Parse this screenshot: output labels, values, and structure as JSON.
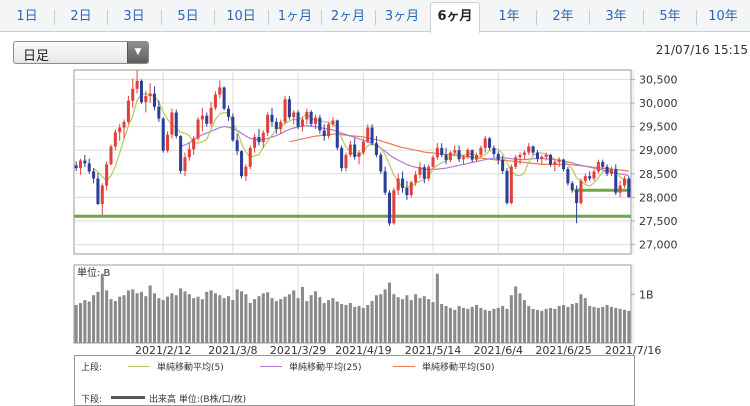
{
  "tabs": [
    {
      "label": "1日",
      "active": false
    },
    {
      "label": "2日",
      "active": false
    },
    {
      "label": "3日",
      "active": false
    },
    {
      "label": "5日",
      "active": false
    },
    {
      "label": "10日",
      "active": false
    },
    {
      "label": "1ヶ月",
      "active": false
    },
    {
      "label": "2ヶ月",
      "active": false
    },
    {
      "label": "3ヶ月",
      "active": false
    },
    {
      "label": "6ヶ月",
      "active": true
    },
    {
      "label": "1年",
      "active": false
    },
    {
      "label": "2年",
      "active": false
    },
    {
      "label": "3年",
      "active": false
    },
    {
      "label": "5年",
      "active": false
    },
    {
      "label": "10年",
      "active": false
    }
  ],
  "period_select": {
    "value": "日足"
  },
  "datetime": "21/07/16 15:15",
  "volume_panel": {
    "unit_label": "単位: B",
    "tick_label": "1B"
  },
  "legend": {
    "upper_label": "上段:",
    "lower_label": "下段:",
    "items": [
      {
        "label": "単純移動平均(5)",
        "color": "#b4c860"
      },
      {
        "label": "単純移動平均(25)",
        "color": "#b07ad8"
      },
      {
        "label": "単純移動平均(50)",
        "color": "#f07a52"
      }
    ],
    "volume_item": {
      "label": "出来高 単位:(B株/口/枚)",
      "color": "#555555"
    }
  },
  "colors": {
    "up": "#e0413a",
    "down": "#2b3f99",
    "support_line": "#70a83c",
    "volume_bar": "#8a8a8a"
  },
  "chart_data": {
    "type": "candlestick",
    "x_tick_labels": [
      "2021/2/12",
      "2021/3/8",
      "2021/3/29",
      "2021/4/19",
      "2021/5/14",
      "2021/6/4",
      "2021/6/25",
      "2021/7/16"
    ],
    "x_tick_positions": [
      20,
      36,
      51,
      66,
      82,
      97,
      112,
      128
    ],
    "ylim": [
      26800,
      30700
    ],
    "y_ticks": [
      27000,
      27500,
      28000,
      28500,
      29000,
      29500,
      30000,
      30500
    ],
    "y_tick_labels": [
      "27,000",
      "27,500",
      "28,000",
      "28,500",
      "29,000",
      "29,500",
      "30,000",
      "30,500"
    ],
    "support_lines": [
      {
        "value": 27600,
        "from_index": 0,
        "to_index": 127
      },
      {
        "value": 28150,
        "from_index": 115,
        "to_index": 127
      }
    ],
    "ohlc": [
      [
        28680,
        28760,
        28560,
        28620
      ],
      [
        28620,
        28820,
        28480,
        28780
      ],
      [
        28780,
        28900,
        28640,
        28720
      ],
      [
        28720,
        28820,
        28500,
        28550
      ],
      [
        28550,
        28620,
        28300,
        28400
      ],
      [
        28400,
        28520,
        27840,
        27860
      ],
      [
        27860,
        28300,
        27630,
        28250
      ],
      [
        28250,
        28760,
        28150,
        28700
      ],
      [
        28700,
        29120,
        28680,
        29080
      ],
      [
        29080,
        29440,
        29000,
        29380
      ],
      [
        29380,
        29560,
        29200,
        29480
      ],
      [
        29480,
        29650,
        29250,
        29600
      ],
      [
        29600,
        30150,
        29550,
        30050
      ],
      [
        30050,
        30520,
        29900,
        30300
      ],
      [
        30300,
        30700,
        30200,
        30470
      ],
      [
        30470,
        30500,
        29980,
        30020
      ],
      [
        30020,
        30250,
        29800,
        30150
      ],
      [
        30150,
        30420,
        30000,
        30200
      ],
      [
        30200,
        30350,
        29850,
        29920
      ],
      [
        29920,
        30050,
        29600,
        29670
      ],
      [
        29670,
        29700,
        28950,
        28990
      ],
      [
        28990,
        29400,
        28950,
        29330
      ],
      [
        29330,
        29880,
        29250,
        29800
      ],
      [
        29800,
        29860,
        29250,
        29300
      ],
      [
        29300,
        29320,
        28500,
        28560
      ],
      [
        28560,
        28950,
        28450,
        28850
      ],
      [
        28850,
        29150,
        28780,
        29020
      ],
      [
        29020,
        29300,
        28900,
        29250
      ],
      [
        29250,
        29700,
        29200,
        29650
      ],
      [
        29650,
        29900,
        29400,
        29730
      ],
      [
        29730,
        29800,
        29500,
        29560
      ],
      [
        29560,
        30020,
        29500,
        29900
      ],
      [
        29900,
        30250,
        29850,
        30180
      ],
      [
        30180,
        30480,
        30100,
        30330
      ],
      [
        30330,
        30350,
        29850,
        29880
      ],
      [
        29880,
        29950,
        29620,
        29710
      ],
      [
        29710,
        29780,
        29180,
        29210
      ],
      [
        29210,
        29350,
        28900,
        28980
      ],
      [
        28980,
        29000,
        28400,
        28450
      ],
      [
        28450,
        28700,
        28350,
        28650
      ],
      [
        28650,
        29100,
        28600,
        29050
      ],
      [
        29050,
        29350,
        28950,
        29280
      ],
      [
        29280,
        29450,
        29100,
        29170
      ],
      [
        29170,
        29420,
        29050,
        29370
      ],
      [
        29370,
        29800,
        29300,
        29750
      ],
      [
        29750,
        29900,
        29500,
        29600
      ],
      [
        29600,
        29680,
        29350,
        29450
      ],
      [
        29450,
        29650,
        29350,
        29600
      ],
      [
        29600,
        30150,
        29550,
        30080
      ],
      [
        30080,
        30150,
        29650,
        29700
      ],
      [
        29700,
        29850,
        29550,
        29800
      ],
      [
        29800,
        29850,
        29450,
        29500
      ],
      [
        29500,
        29700,
        29400,
        29650
      ],
      [
        29650,
        29880,
        29550,
        29810
      ],
      [
        29810,
        29850,
        29500,
        29560
      ],
      [
        29560,
        29750,
        29450,
        29690
      ],
      [
        29690,
        29750,
        29350,
        29420
      ],
      [
        29420,
        29550,
        29200,
        29300
      ],
      [
        29300,
        29600,
        29250,
        29550
      ],
      [
        29550,
        29700,
        29500,
        29630
      ],
      [
        29630,
        29650,
        29000,
        29050
      ],
      [
        29050,
        29100,
        28550,
        28620
      ],
      [
        28620,
        28950,
        28550,
        28900
      ],
      [
        28900,
        29200,
        28850,
        29120
      ],
      [
        29120,
        29250,
        28800,
        28860
      ],
      [
        28860,
        29000,
        28700,
        28950
      ],
      [
        28950,
        29250,
        28900,
        29180
      ],
      [
        29180,
        29550,
        29150,
        29480
      ],
      [
        29480,
        29550,
        29100,
        29150
      ],
      [
        29150,
        29300,
        28850,
        28900
      ],
      [
        28900,
        28950,
        28500,
        28550
      ],
      [
        28550,
        28650,
        28050,
        28100
      ],
      [
        28100,
        28150,
        27400,
        27450
      ],
      [
        27450,
        28200,
        27420,
        28150
      ],
      [
        28150,
        28500,
        28050,
        28400
      ],
      [
        28400,
        28550,
        28100,
        28200
      ],
      [
        28200,
        28350,
        27950,
        28050
      ],
      [
        28050,
        28350,
        28000,
        28320
      ],
      [
        28320,
        28550,
        28250,
        28480
      ],
      [
        28480,
        28750,
        28400,
        28640
      ],
      [
        28640,
        28700,
        28300,
        28400
      ],
      [
        28400,
        28700,
        28350,
        28650
      ],
      [
        28650,
        28900,
        28600,
        28850
      ],
      [
        28850,
        29150,
        28800,
        29050
      ],
      [
        29050,
        29150,
        28850,
        28900
      ],
      [
        28900,
        29050,
        28700,
        28790
      ],
      [
        28790,
        28980,
        28750,
        28950
      ],
      [
        28950,
        29100,
        28900,
        29000
      ],
      [
        29000,
        29100,
        28750,
        28810
      ],
      [
        28810,
        28900,
        28700,
        28850
      ],
      [
        28850,
        29050,
        28820,
        29000
      ],
      [
        29000,
        29020,
        28750,
        28800
      ],
      [
        28800,
        28950,
        28750,
        28900
      ],
      [
        28900,
        29100,
        28850,
        29050
      ],
      [
        29050,
        29300,
        28950,
        29250
      ],
      [
        29250,
        29280,
        29000,
        29050
      ],
      [
        29050,
        29100,
        28850,
        28920
      ],
      [
        28920,
        28980,
        28700,
        28800
      ],
      [
        28800,
        28880,
        28500,
        28560
      ],
      [
        28560,
        28620,
        27850,
        27880
      ],
      [
        27880,
        28700,
        27850,
        28650
      ],
      [
        28650,
        28900,
        28600,
        28850
      ],
      [
        28850,
        28950,
        28700,
        28900
      ],
      [
        28900,
        29000,
        28800,
        28950
      ],
      [
        28950,
        29150,
        28900,
        29080
      ],
      [
        29080,
        29100,
        28900,
        28950
      ],
      [
        28950,
        29000,
        28750,
        28820
      ],
      [
        28820,
        28900,
        28700,
        28860
      ],
      [
        28860,
        28950,
        28780,
        28900
      ],
      [
        28900,
        28920,
        28650,
        28700
      ],
      [
        28700,
        28800,
        28550,
        28750
      ],
      [
        28750,
        28850,
        28650,
        28800
      ],
      [
        28800,
        28820,
        28550,
        28600
      ],
      [
        28600,
        28650,
        28250,
        28300
      ],
      [
        28300,
        28350,
        28100,
        28150
      ],
      [
        28150,
        28250,
        27450,
        27880
      ],
      [
        27880,
        28400,
        27850,
        28350
      ],
      [
        28350,
        28500,
        28300,
        28450
      ],
      [
        28450,
        28550,
        28350,
        28400
      ],
      [
        28400,
        28600,
        28350,
        28550
      ],
      [
        28550,
        28800,
        28500,
        28750
      ],
      [
        28750,
        28800,
        28600,
        28650
      ],
      [
        28650,
        28700,
        28450,
        28500
      ],
      [
        28500,
        28650,
        28450,
        28600
      ],
      [
        28600,
        28700,
        28050,
        28100
      ],
      [
        28100,
        28350,
        28000,
        28250
      ],
      [
        28250,
        28450,
        28200,
        28400
      ],
      [
        28400,
        28450,
        28000,
        28000
      ]
    ],
    "volume": [
      0.78,
      0.82,
      0.88,
      0.85,
      0.98,
      1.05,
      1.42,
      1.08,
      0.9,
      0.86,
      0.95,
      0.98,
      1.08,
      1.1,
      1.02,
      1.05,
      0.96,
      1.18,
      1.02,
      0.92,
      0.88,
      0.95,
      1.02,
      0.98,
      1.12,
      1.06,
      1.0,
      0.92,
      0.95,
      0.9,
      1.05,
      1.08,
      1.02,
      0.98,
      0.92,
      0.96,
      0.88,
      1.1,
      1.06,
      1.0,
      0.82,
      0.9,
      0.96,
      1.02,
      1.04,
      0.92,
      0.86,
      0.9,
      0.95,
      1.0,
      1.08,
      0.92,
      1.15,
      0.86,
      0.98,
      1.06,
      0.94,
      0.82,
      0.88,
      0.92,
      0.85,
      0.8,
      0.78,
      0.82,
      0.74,
      0.76,
      0.72,
      0.78,
      0.86,
      0.98,
      1.0,
      1.1,
      1.24,
      1.0,
      0.94,
      0.9,
      0.98,
      0.88,
      1.0,
      0.92,
      0.96,
      0.9,
      0.84,
      1.42,
      0.8,
      0.76,
      0.72,
      0.68,
      0.76,
      0.72,
      0.7,
      0.74,
      0.78,
      0.72,
      0.68,
      0.66,
      0.7,
      0.72,
      0.76,
      0.7,
      0.98,
      1.16,
      1.02,
      0.88,
      0.76,
      0.7,
      0.68,
      0.66,
      0.7,
      0.72,
      0.7,
      0.76,
      0.78,
      0.74,
      0.8,
      0.82,
      1.0,
      0.92,
      0.76,
      0.74,
      0.72,
      0.74,
      0.78,
      0.74,
      0.72,
      0.7,
      0.68,
      0.66
    ],
    "volume_ylim": [
      0,
      1.6
    ],
    "volume_ticks": [
      1.0
    ],
    "sma5": [
      null,
      null,
      null,
      null,
      28610,
      28540,
      28440,
      28350,
      28460,
      28650,
      28940,
      29240,
      29510,
      29720,
      30060,
      30190,
      30200,
      30160,
      30150,
      30020,
      29810,
      29650,
      29540,
      29470,
      29380,
      29360,
      29310,
      29160,
      29150,
      29180,
      29230,
      29440,
      29650,
      29770,
      29800,
      29790,
      29580,
      29420,
      29140,
      28960,
      28860,
      28880,
      28910,
      29060,
      29190,
      29320,
      29430,
      29500,
      29570,
      29620,
      29660,
      29640,
      29700,
      29770,
      29670,
      29640,
      29630,
      29600,
      29590,
      29550,
      29480,
      29260,
      29060,
      28980,
      28890,
      28890,
      28970,
      29100,
      29130,
      29130,
      29050,
      28910,
      28700,
      28470,
      28340,
      28210,
      28220,
      28230,
      28300,
      28340,
      28380,
      28460,
      28600,
      28680,
      28730,
      28780,
      28880,
      28940,
      28910,
      28890,
      28920,
      28930,
      28880,
      28860,
      28910,
      28980,
      29020,
      29020,
      28930,
      28730,
      28560,
      28470,
      28460,
      28520,
      28750,
      28890,
      28940,
      28940,
      28920,
      28860,
      28810,
      28800,
      28760,
      28700,
      28600,
      28410,
      28340,
      28270,
      28240,
      28310,
      28420,
      28540,
      28560,
      28600,
      28590,
      28430,
      28380,
      28290
    ],
    "sma25": [
      null,
      null,
      null,
      null,
      null,
      null,
      null,
      null,
      null,
      null,
      null,
      null,
      null,
      null,
      null,
      null,
      null,
      null,
      null,
      null,
      null,
      null,
      null,
      null,
      29080,
      29110,
      29160,
      29220,
      29280,
      29330,
      29360,
      29400,
      29440,
      29480,
      29500,
      29490,
      29460,
      29420,
      29360,
      29300,
      29250,
      29230,
      29220,
      29230,
      29250,
      29280,
      29310,
      29350,
      29400,
      29440,
      29470,
      29490,
      29510,
      29520,
      29510,
      29500,
      29480,
      29460,
      29450,
      29430,
      29400,
      29360,
      29330,
      29300,
      29270,
      29240,
      29210,
      29180,
      29140,
      29100,
      29040,
      28980,
      28900,
      28840,
      28790,
      28740,
      28700,
      28660,
      28640,
      28620,
      28600,
      28590,
      28590,
      28600,
      28610,
      28620,
      28640,
      28660,
      28680,
      28700,
      28720,
      28740,
      28760,
      28780,
      28800,
      28820,
      28830,
      28840,
      28840,
      28830,
      28820,
      28810,
      28800,
      28800,
      28810,
      28820,
      28820,
      28820,
      28820,
      28810,
      28800,
      28790,
      28770,
      28750,
      28730,
      28700,
      28680,
      28660,
      28640,
      28620,
      28600,
      28580,
      28560,
      28540,
      28520,
      28500,
      28480,
      28460
    ],
    "sma50": [
      null,
      null,
      null,
      null,
      null,
      null,
      null,
      null,
      null,
      null,
      null,
      null,
      null,
      null,
      null,
      null,
      null,
      null,
      null,
      null,
      null,
      null,
      null,
      null,
      null,
      null,
      null,
      null,
      null,
      null,
      null,
      null,
      null,
      null,
      null,
      null,
      null,
      null,
      null,
      null,
      null,
      null,
      null,
      null,
      null,
      null,
      null,
      null,
      null,
      29180,
      29200,
      29220,
      29240,
      29260,
      29280,
      29300,
      29310,
      29320,
      29330,
      29340,
      29340,
      29330,
      29320,
      29310,
      29300,
      29290,
      29280,
      29260,
      29240,
      29220,
      29200,
      29170,
      29140,
      29110,
      29080,
      29060,
      29040,
      29020,
      29000,
      28980,
      28960,
      28950,
      28940,
      28930,
      28920,
      28910,
      28900,
      28890,
      28880,
      28870,
      28860,
      28850,
      28840,
      28830,
      28820,
      28810,
      28800,
      28790,
      28790,
      28780,
      28770,
      28760,
      28750,
      28740,
      28730,
      28720,
      28710,
      28700,
      28700,
      28700,
      28700,
      28700,
      28700,
      28700,
      28690,
      28680,
      28670,
      28660,
      28650,
      28640,
      28630,
      28620,
      28610,
      28600,
      28590,
      28580,
      28570,
      28560
    ]
  }
}
